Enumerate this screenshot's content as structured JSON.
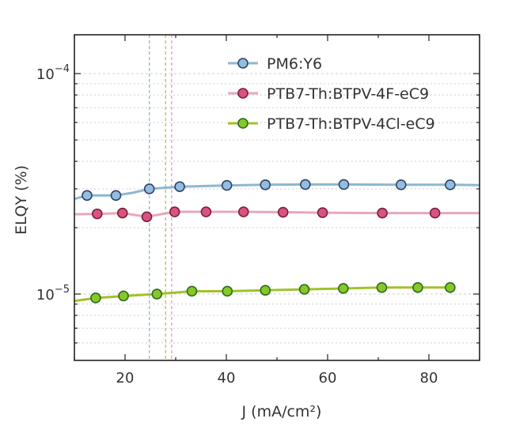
{
  "chart_data": {
    "type": "line",
    "xlabel": "J (mA/cm²)",
    "ylabel": "ELQY (%)",
    "xlim": [
      10,
      90
    ],
    "ylim": [
      5e-06,
      0.00015
    ],
    "yscale": "log",
    "x_ticks": [
      20,
      40,
      60,
      80
    ],
    "x_tick_labels": [
      "20",
      "40",
      "60",
      "80"
    ],
    "y_ticks": [
      1e-05,
      0.0001
    ],
    "y_tick_labels": [
      {
        "base": "10",
        "exp": "−5"
      },
      {
        "base": "10",
        "exp": "−4"
      }
    ],
    "grid": "y-minor-dotted",
    "legend_position": "top-right",
    "series": [
      {
        "name": "PM6:Y6",
        "color": "#8cb8cf",
        "marker_fill": "#94bde0",
        "marker_edge": "#2e4468",
        "x": [
          12.5,
          18.2,
          24.8,
          30.8,
          40.1,
          47.7,
          55.6,
          63.2,
          74.5,
          84.2
        ],
        "y": [
          2.8e-05,
          2.8e-05,
          3e-05,
          3.07e-05,
          3.11e-05,
          3.13e-05,
          3.14e-05,
          3.14e-05,
          3.13e-05,
          3.13e-05
        ],
        "line_x": [
          10,
          12.5,
          18.2,
          21.5,
          24.8,
          30.8,
          40.1,
          47.7,
          55.6,
          63.2,
          74.5,
          84.2,
          90
        ],
        "line_y": [
          2.7e-05,
          2.8e-05,
          2.8e-05,
          2.88e-05,
          3e-05,
          3.07e-05,
          3.11e-05,
          3.13e-05,
          3.14e-05,
          3.14e-05,
          3.13e-05,
          3.13e-05,
          3.12e-05
        ]
      },
      {
        "name": "PTB7-Th:BTPV-4F-eC9",
        "color": "#e8a6bd",
        "marker_fill": "#d9547c",
        "marker_edge": "#7a1f3c",
        "x": [
          14.5,
          19.5,
          24.3,
          29.8,
          36.0,
          43.4,
          51.2,
          59.0,
          70.8,
          81.2
        ],
        "y": [
          2.31e-05,
          2.33e-05,
          2.24e-05,
          2.36e-05,
          2.36e-05,
          2.36e-05,
          2.35e-05,
          2.34e-05,
          2.33e-05,
          2.33e-05
        ],
        "line_x": [
          10,
          14.5,
          19.5,
          24.3,
          29.8,
          36.0,
          43.4,
          51.2,
          59.0,
          70.8,
          81.2,
          90
        ],
        "line_y": [
          2.3e-05,
          2.31e-05,
          2.33e-05,
          2.24e-05,
          2.36e-05,
          2.36e-05,
          2.36e-05,
          2.35e-05,
          2.34e-05,
          2.33e-05,
          2.33e-05,
          2.33e-05
        ]
      },
      {
        "name": "PTB7-Th:BTPV-4Cl-eC9",
        "color": "#a0c22a",
        "marker_fill": "#86c72a",
        "marker_edge": "#2f6a1c",
        "x": [
          14.2,
          19.7,
          26.3,
          33.2,
          40.2,
          47.7,
          55.4,
          63.1,
          70.7,
          77.8,
          84.2
        ],
        "y": [
          9.6e-06,
          9.8e-06,
          1e-05,
          1.03e-05,
          1.03e-05,
          1.04e-05,
          1.05e-05,
          1.06e-05,
          1.07e-05,
          1.07e-05,
          1.07e-05
        ],
        "line_x": [
          10,
          14.2,
          19.7,
          26.3,
          33.2,
          40.2,
          47.7,
          55.4,
          63.1,
          70.7,
          77.8,
          84.2
        ],
        "line_y": [
          9.3e-06,
          9.6e-06,
          9.8e-06,
          1e-05,
          1.03e-05,
          1.03e-05,
          1.04e-05,
          1.05e-05,
          1.06e-05,
          1.07e-05,
          1.07e-05,
          1.07e-05
        ]
      }
    ],
    "vertical_lines": [
      {
        "x": 24.8,
        "color": "#8cb8d8"
      },
      {
        "x": 28.0,
        "color": "#b3c24a"
      },
      {
        "x": 29.2,
        "color": "#e89ab5"
      }
    ]
  }
}
